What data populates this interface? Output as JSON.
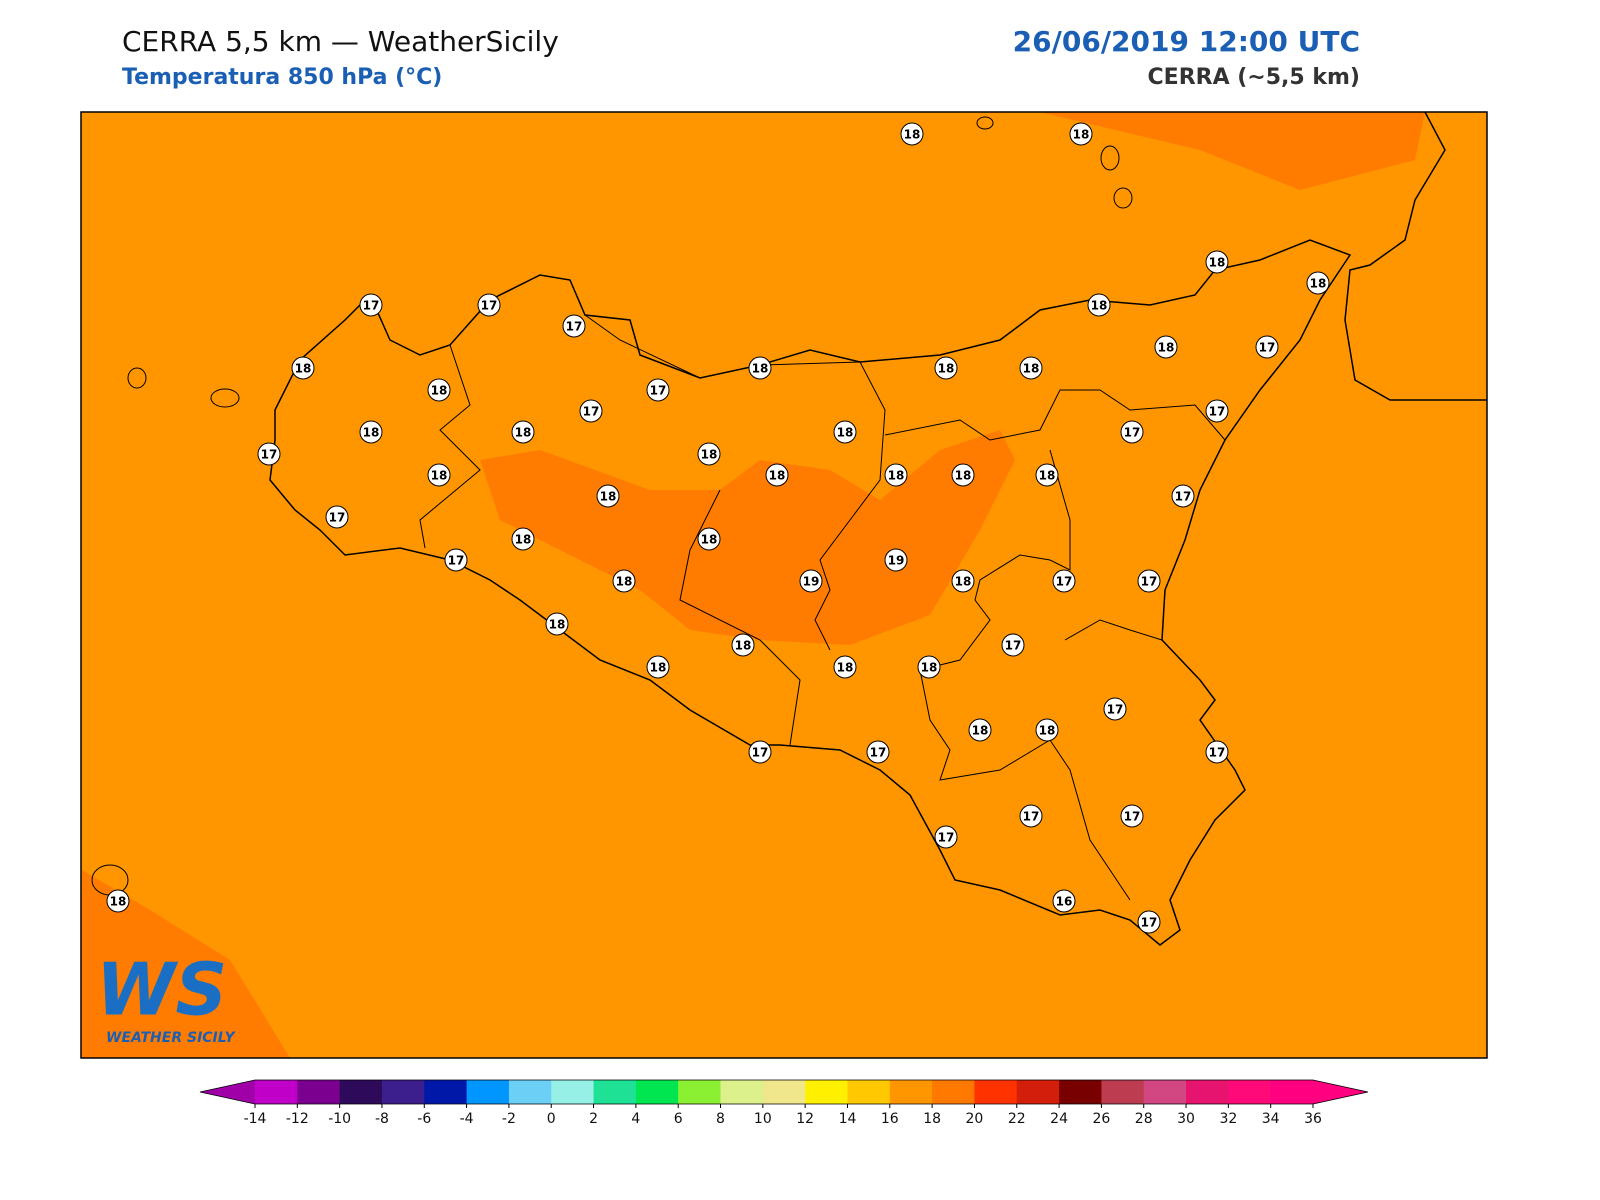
{
  "header": {
    "title": "CERRA 5,5 km — WeatherSicily",
    "subtitle": "Temperatura 850 hPa (°C)",
    "datetime": "26/06/2019 12:00 UTC",
    "model": "CERRA (~5,5 km)"
  },
  "stations": [
    18,
    18,
    18,
    18,
    17,
    17,
    17,
    18,
    18,
    18,
    18,
    18,
    18,
    17,
    18,
    17,
    17,
    17,
    18,
    18,
    18,
    17,
    17,
    18,
    18,
    18,
    18,
    18,
    18,
    18,
    17,
    17,
    18,
    18,
    17,
    19,
    18,
    19,
    18,
    17,
    17,
    18,
    18,
    17,
    18,
    18,
    18,
    17,
    18,
    18,
    17,
    17,
    17,
    17,
    17,
    17,
    18,
    16,
    17
  ],
  "colorbar": {
    "ticks": [
      -14,
      -12,
      -10,
      -8,
      -6,
      -4,
      -2,
      0,
      2,
      4,
      6,
      8,
      10,
      12,
      14,
      16,
      18,
      20,
      22,
      24,
      26,
      28,
      30,
      32,
      34,
      36
    ],
    "colors": [
      "#c000c8",
      "#7b0090",
      "#2d0a5a",
      "#3c1e8c",
      "#0018a8",
      "#0096ff",
      "#6ccff6",
      "#96f0e6",
      "#1ee196",
      "#00e650",
      "#8cf032",
      "#dcf08c",
      "#f0e68c",
      "#fff000",
      "#ffc800",
      "#ff9600",
      "#ff7800",
      "#ff3200",
      "#d21e0a",
      "#780000",
      "#be3c50",
      "#d24682",
      "#e6146e",
      "#ff0a78",
      "#ff0080"
    ],
    "under": "#a000a8",
    "over": "#ff0080"
  },
  "logo": {
    "mark": "WS",
    "name": "WEATHER SICILY"
  }
}
